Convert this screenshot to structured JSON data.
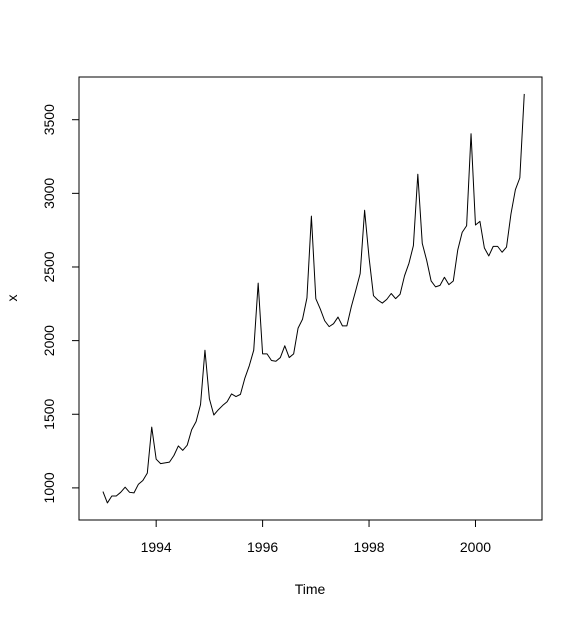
{
  "chart_data": {
    "type": "line",
    "title": "",
    "xlabel": "Time",
    "ylabel": "x",
    "xlim": [
      1992.55,
      2001.25
    ],
    "ylim": [
      782,
      3790
    ],
    "x_ticks": [
      1994,
      1996,
      1998,
      2000
    ],
    "x_tick_labels": [
      "1994",
      "1996",
      "1998",
      "2000"
    ],
    "y_ticks": [
      1000,
      1500,
      2000,
      2500,
      3000,
      3500
    ],
    "y_tick_labels": [
      "1000",
      "1500",
      "2000",
      "2500",
      "3000",
      "3500"
    ],
    "grid": false,
    "legend": "none",
    "line_color": "#000000",
    "series": [
      {
        "x_start": 1993.0,
        "frequency": 12,
        "values": [
          975,
          898,
          945,
          945,
          970,
          1005,
          970,
          966,
          1025,
          1050,
          1100,
          1413,
          1195,
          1165,
          1170,
          1175,
          1220,
          1285,
          1255,
          1290,
          1395,
          1450,
          1565,
          1935,
          1605,
          1495,
          1530,
          1560,
          1585,
          1638,
          1620,
          1635,
          1745,
          1830,
          1935,
          2390,
          1910,
          1910,
          1865,
          1860,
          1885,
          1965,
          1885,
          1910,
          2085,
          2145,
          2290,
          2845,
          2285,
          2215,
          2135,
          2095,
          2115,
          2160,
          2100,
          2100,
          2230,
          2340,
          2455,
          2885,
          2565,
          2305,
          2275,
          2255,
          2280,
          2320,
          2285,
          2315,
          2440,
          2525,
          2645,
          3130,
          2660,
          2545,
          2405,
          2365,
          2375,
          2430,
          2380,
          2405,
          2615,
          2735,
          2780,
          3405,
          2785,
          2810,
          2630,
          2575,
          2640,
          2640,
          2600,
          2635,
          2860,
          3025,
          3105,
          3675
        ]
      }
    ]
  }
}
